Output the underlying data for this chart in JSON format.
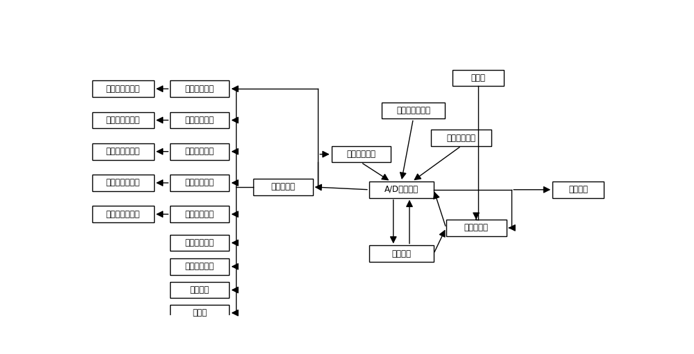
{
  "fig_width": 10.0,
  "fig_height": 5.11,
  "dpi": 100,
  "bg_color": "#ffffff",
  "box_color": "#ffffff",
  "box_edge": "#000000",
  "text_color": "#000000",
  "font_size": 8.5,
  "boxes": {
    "第一电动伸缩杆": [
      0.01,
      0.8,
      0.115,
      0.06
    ],
    "第二电动伸缩杆": [
      0.01,
      0.685,
      0.115,
      0.06
    ],
    "第三电动伸缩杆": [
      0.01,
      0.57,
      0.115,
      0.06
    ],
    "第四电动伸缩杆": [
      0.01,
      0.455,
      0.115,
      0.06
    ],
    "第五电动伸缩杆": [
      0.01,
      0.34,
      0.115,
      0.06
    ],
    "第一控制开关": [
      0.155,
      0.8,
      0.11,
      0.06
    ],
    "第二控制开关": [
      0.155,
      0.685,
      0.11,
      0.06
    ],
    "第三控制开关": [
      0.155,
      0.57,
      0.11,
      0.06
    ],
    "第四控制开关": [
      0.155,
      0.455,
      0.11,
      0.06
    ],
    "第五控制开关": [
      0.155,
      0.34,
      0.11,
      0.06
    ],
    "超声发生装置": [
      0.155,
      0.235,
      0.11,
      0.06
    ],
    "红外发射装置": [
      0.155,
      0.148,
      0.11,
      0.06
    ],
    "扬声器一": [
      0.155,
      0.062,
      0.11,
      0.06
    ],
    "补光灯": [
      0.155,
      -0.022,
      0.11,
      0.06
    ],
    "总控制开关": [
      0.31,
      0.44,
      0.11,
      0.06
    ],
    "超声接收装置": [
      0.455,
      0.56,
      0.11,
      0.06
    ],
    "声音接收装置一": [
      0.548,
      0.72,
      0.118,
      0.06
    ],
    "红外接收装置": [
      0.64,
      0.62,
      0.112,
      0.06
    ],
    "A/D转换器一": [
      0.525,
      0.43,
      0.12,
      0.06
    ],
    "分处理器": [
      0.525,
      0.195,
      0.12,
      0.06
    ],
    "连接装置一": [
      0.668,
      0.29,
      0.112,
      0.06
    ],
    "摄像头": [
      0.68,
      0.84,
      0.095,
      0.06
    ],
    "总控制端": [
      0.866,
      0.43,
      0.095,
      0.06
    ]
  }
}
